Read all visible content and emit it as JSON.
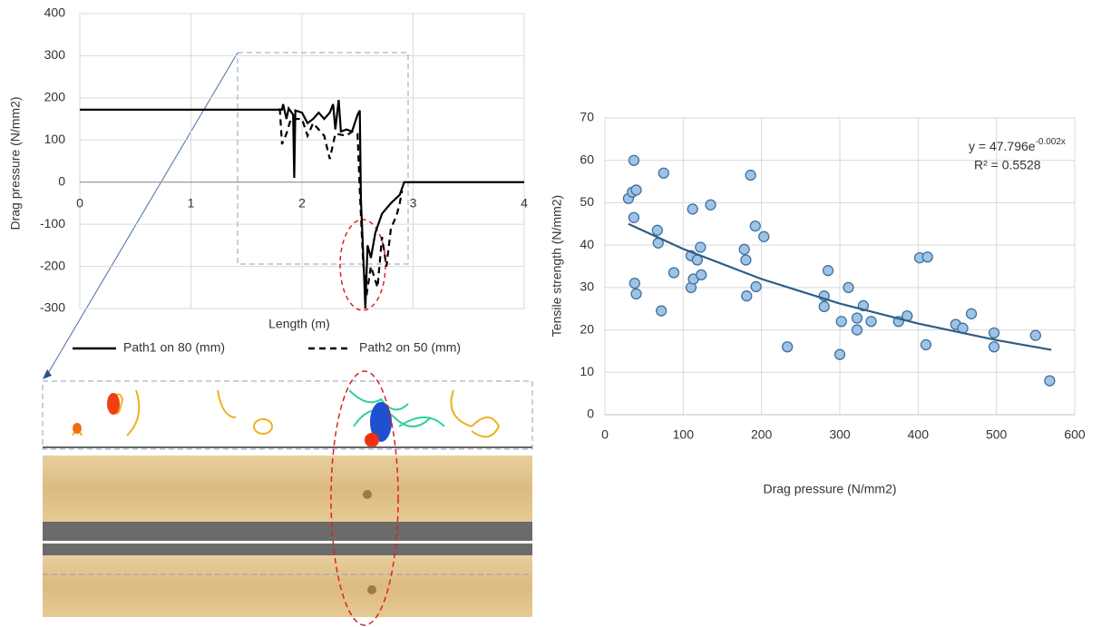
{
  "chart_data": [
    {
      "type": "line",
      "xlabel": "Length (m)",
      "ylabel": "Drag pressure (N/mm2)",
      "xlim": [
        0,
        4
      ],
      "xticks": [
        0,
        1,
        2,
        3,
        4
      ],
      "ylim": [
        -300,
        400
      ],
      "yticks": [
        -300,
        -200,
        -100,
        0,
        100,
        200,
        300,
        400
      ],
      "grid": true,
      "legend": "bottom",
      "series": [
        {
          "name": "Path1 on 80 (mm)",
          "color": "#000000",
          "line_style": "solid",
          "x": [
            0,
            1.82,
            1.83,
            1.86,
            1.88,
            1.92,
            1.93,
            1.94,
            2.0,
            2.05,
            2.1,
            2.15,
            2.2,
            2.25,
            2.28,
            2.3,
            2.33,
            2.35,
            2.4,
            2.45,
            2.5,
            2.52,
            2.53,
            2.56,
            2.57,
            2.59,
            2.62,
            2.66,
            2.72,
            2.8,
            2.88,
            2.92,
            4
          ],
          "values": [
            172,
            172,
            185,
            150,
            175,
            160,
            10,
            170,
            165,
            140,
            150,
            165,
            150,
            165,
            185,
            125,
            195,
            120,
            125,
            120,
            160,
            170,
            -40,
            -230,
            -300,
            -150,
            -180,
            -120,
            -75,
            -50,
            -30,
            0,
            0
          ]
        },
        {
          "name": "Path2 on 50 (mm)",
          "color": "#000000",
          "line_style": "dashed",
          "x": [
            1.8,
            1.82,
            1.86,
            1.9,
            2.0,
            2.05,
            2.1,
            2.2,
            2.25,
            2.3,
            2.4,
            2.45,
            2.5,
            2.52,
            2.55,
            2.58,
            2.62,
            2.68,
            2.72,
            2.76,
            2.8,
            2.85,
            2.88,
            2.9
          ],
          "values": [
            175,
            90,
            115,
            150,
            150,
            110,
            140,
            110,
            55,
            115,
            110,
            120,
            115,
            -20,
            -190,
            -270,
            -200,
            -250,
            -130,
            -200,
            -110,
            -80,
            -50,
            -20
          ]
        }
      ]
    },
    {
      "type": "scatter",
      "xlabel": "Drag pressure (N/mm2)",
      "ylabel": "Tensile strength (N/mm2)",
      "xlim": [
        0,
        600
      ],
      "xticks": [
        0,
        100,
        200,
        300,
        400,
        500,
        600
      ],
      "ylim": [
        0,
        70
      ],
      "yticks": [
        0,
        10,
        20,
        30,
        40,
        50,
        60,
        70
      ],
      "grid": true,
      "color": "#9dc3e6",
      "edgecolor": "#41719c",
      "x": [
        30,
        35,
        37,
        40,
        37,
        38,
        40,
        67,
        68,
        72,
        75,
        88,
        110,
        112,
        110,
        113,
        118,
        122,
        123,
        135,
        178,
        180,
        181,
        186,
        192,
        193,
        203,
        233,
        280,
        280,
        285,
        300,
        302,
        311,
        322,
        322,
        330,
        340,
        375,
        386,
        402,
        412,
        410,
        448,
        457,
        468,
        497,
        497,
        550,
        568
      ],
      "values": [
        51,
        52.5,
        60,
        53,
        46.5,
        31,
        28.5,
        43.5,
        40.5,
        24.5,
        57,
        33.5,
        37.5,
        48.5,
        30,
        32,
        36.5,
        39.5,
        33,
        49.5,
        39,
        36.5,
        28,
        56.5,
        44.5,
        30.2,
        42,
        16,
        28,
        25.5,
        34,
        14.2,
        22,
        30,
        22.8,
        20,
        25.7,
        22,
        22,
        23.3,
        37,
        37.2,
        16.5,
        21.3,
        20.4,
        23.8,
        19.3,
        16,
        18.7,
        8
      ],
      "trendline": {
        "color": "#2e5d86",
        "x": [
          30,
          100,
          200,
          300,
          400,
          500,
          570
        ],
        "y": [
          45,
          39.1,
          32,
          26.2,
          21.5,
          17.6,
          15.3
        ]
      },
      "equation": {
        "base": "y = 47.796e",
        "exponent": "-0.002x"
      },
      "r_squared": "R² = 0.5528"
    }
  ]
}
